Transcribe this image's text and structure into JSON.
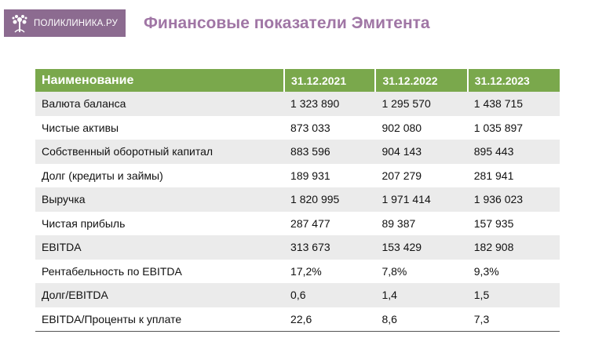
{
  "header": {
    "logo": "ПОЛИКЛИНИКА.РУ",
    "title": "Финансовые показатели Эмитента"
  },
  "table": {
    "columns": [
      "Наименование",
      "31.12.2021",
      "31.12.2022",
      "31.12.2023"
    ],
    "rows": [
      [
        "Валюта баланса",
        "1 323 890",
        "1 295 570",
        "1 438 715"
      ],
      [
        "Чистые активы",
        "873 033",
        "902 080",
        "1 035 897"
      ],
      [
        "Собственный оборотный капитал",
        "883 596",
        "904 143",
        "895 443"
      ],
      [
        "Долг (кредиты и займы)",
        "189 931",
        "207 279",
        "281 941"
      ],
      [
        "Выручка",
        "1 820 995",
        "1 971 414",
        "1 936 023"
      ],
      [
        "Чистая прибыль",
        "287 477",
        "89 387",
        "157 935"
      ],
      [
        "EBITDA",
        "313 673",
        "153 429",
        "182 908"
      ],
      [
        "Рентабельность по EBITDA",
        "17,2%",
        "7,8%",
        "9,3%"
      ],
      [
        "Долг/EBITDA",
        "0,6",
        "1,4",
        "1,5"
      ],
      [
        "EBITDA/Проценты к уплате",
        "22,6",
        "8,6",
        "7,3"
      ]
    ]
  }
}
